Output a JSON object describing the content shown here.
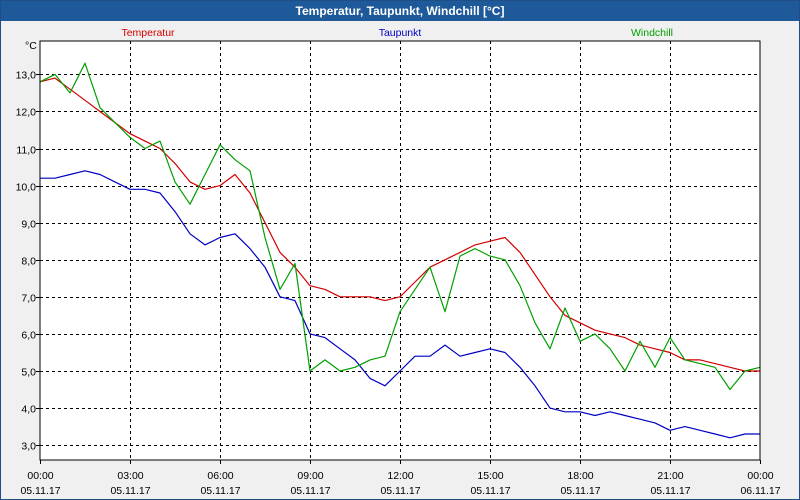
{
  "window": {
    "title": "Temperatur, Taupunkt, Windchill [°C]"
  },
  "colors": {
    "temperatur": "#d40000",
    "taupunkt": "#0000c0",
    "windchill": "#00a000",
    "grid": "#000000",
    "plot_bg": "#ffffff"
  },
  "chart_data": {
    "type": "line",
    "title": "Temperatur, Taupunkt, Windchill [°C]",
    "ylabel": "°C",
    "ylim": [
      2.6,
      13.9
    ],
    "xlim": [
      0,
      24
    ],
    "yticks": [
      3.0,
      4.0,
      5.0,
      6.0,
      7.0,
      8.0,
      9.0,
      10.0,
      11.0,
      12.0,
      13.0
    ],
    "ytick_labels": [
      "3,0",
      "4,0",
      "5,0",
      "6,0",
      "7,0",
      "8,0",
      "9,0",
      "10,0",
      "11,0",
      "12,0",
      "13,0"
    ],
    "xticks": [
      0,
      3,
      6,
      9,
      12,
      15,
      18,
      21,
      24
    ],
    "xtick_times": [
      "00:00",
      "03:00",
      "06:00",
      "09:00",
      "12:00",
      "15:00",
      "18:00",
      "21:00",
      "00:00"
    ],
    "xtick_dates": [
      "05.11.17",
      "05.11.17",
      "05.11.17",
      "05.11.17",
      "05.11.17",
      "05.11.17",
      "05.11.17",
      "05.11.17",
      "06.11.17"
    ],
    "legend": [
      "Temperatur",
      "Taupunkt",
      "Windchill"
    ],
    "grid": true,
    "series": [
      {
        "name": "Temperatur",
        "x": [
          0,
          0.5,
          1,
          1.5,
          2,
          2.5,
          3,
          3.5,
          4,
          4.5,
          5,
          5.5,
          6,
          6.5,
          7,
          7.5,
          8,
          8.5,
          9,
          9.5,
          10,
          10.5,
          11,
          11.5,
          12,
          12.5,
          13,
          13.5,
          14,
          14.5,
          15,
          15.5,
          16,
          16.5,
          17,
          17.5,
          18,
          18.5,
          19,
          19.5,
          20,
          20.5,
          21,
          21.5,
          22,
          22.5,
          23,
          23.5,
          24
        ],
        "values": [
          12.8,
          12.9,
          12.6,
          12.3,
          12.0,
          11.7,
          11.4,
          11.2,
          11.0,
          10.6,
          10.1,
          9.9,
          10.0,
          10.3,
          9.8,
          9.0,
          8.2,
          7.8,
          7.3,
          7.2,
          7.0,
          7.0,
          7.0,
          6.9,
          7.0,
          7.4,
          7.8,
          8.0,
          8.2,
          8.4,
          8.5,
          8.6,
          8.2,
          7.6,
          7.0,
          6.5,
          6.3,
          6.1,
          6.0,
          5.9,
          5.7,
          5.6,
          5.5,
          5.3,
          5.3,
          5.2,
          5.1,
          5.0,
          5.0
        ]
      },
      {
        "name": "Taupunkt",
        "x": [
          0,
          0.5,
          1,
          1.5,
          2,
          2.5,
          3,
          3.5,
          4,
          4.5,
          5,
          5.5,
          6,
          6.5,
          7,
          7.5,
          8,
          8.5,
          9,
          9.5,
          10,
          10.5,
          11,
          11.5,
          12,
          12.5,
          13,
          13.5,
          14,
          14.5,
          15,
          15.5,
          16,
          16.5,
          17,
          17.5,
          18,
          18.5,
          19,
          19.5,
          20,
          20.5,
          21,
          21.5,
          22,
          22.5,
          23,
          23.5,
          24
        ],
        "values": [
          10.2,
          10.2,
          10.3,
          10.4,
          10.3,
          10.1,
          9.9,
          9.9,
          9.8,
          9.3,
          8.7,
          8.4,
          8.6,
          8.7,
          8.3,
          7.8,
          7.0,
          6.9,
          6.0,
          5.9,
          5.6,
          5.3,
          4.8,
          4.6,
          5.0,
          5.4,
          5.4,
          5.7,
          5.4,
          5.5,
          5.6,
          5.5,
          5.1,
          4.6,
          4.0,
          3.9,
          3.9,
          3.8,
          3.9,
          3.8,
          3.7,
          3.6,
          3.4,
          3.5,
          3.4,
          3.3,
          3.2,
          3.3,
          3.3
        ]
      },
      {
        "name": "Windchill",
        "x": [
          0,
          0.5,
          1,
          1.5,
          2,
          2.5,
          3,
          3.5,
          4,
          4.5,
          5,
          5.5,
          6,
          6.5,
          7,
          7.5,
          8,
          8.5,
          9,
          9.5,
          10,
          10.5,
          11,
          11.5,
          12,
          12.5,
          13,
          13.5,
          14,
          14.5,
          15,
          15.5,
          16,
          16.5,
          17,
          17.5,
          18,
          18.5,
          19,
          19.5,
          20,
          20.5,
          21,
          21.5,
          22,
          22.5,
          23,
          23.5,
          24
        ],
        "values": [
          12.8,
          13.0,
          12.5,
          13.3,
          12.1,
          11.7,
          11.3,
          11.0,
          11.2,
          10.1,
          9.5,
          10.3,
          11.1,
          10.7,
          10.4,
          8.6,
          7.2,
          7.9,
          5.0,
          5.3,
          5.0,
          5.1,
          5.3,
          5.4,
          6.6,
          7.2,
          7.8,
          6.6,
          8.1,
          8.3,
          8.1,
          8.0,
          7.3,
          6.3,
          5.6,
          6.7,
          5.8,
          6.0,
          5.6,
          5.0,
          5.8,
          5.1,
          5.9,
          5.3,
          5.2,
          5.1,
          4.5,
          5.0,
          5.1
        ]
      }
    ]
  }
}
